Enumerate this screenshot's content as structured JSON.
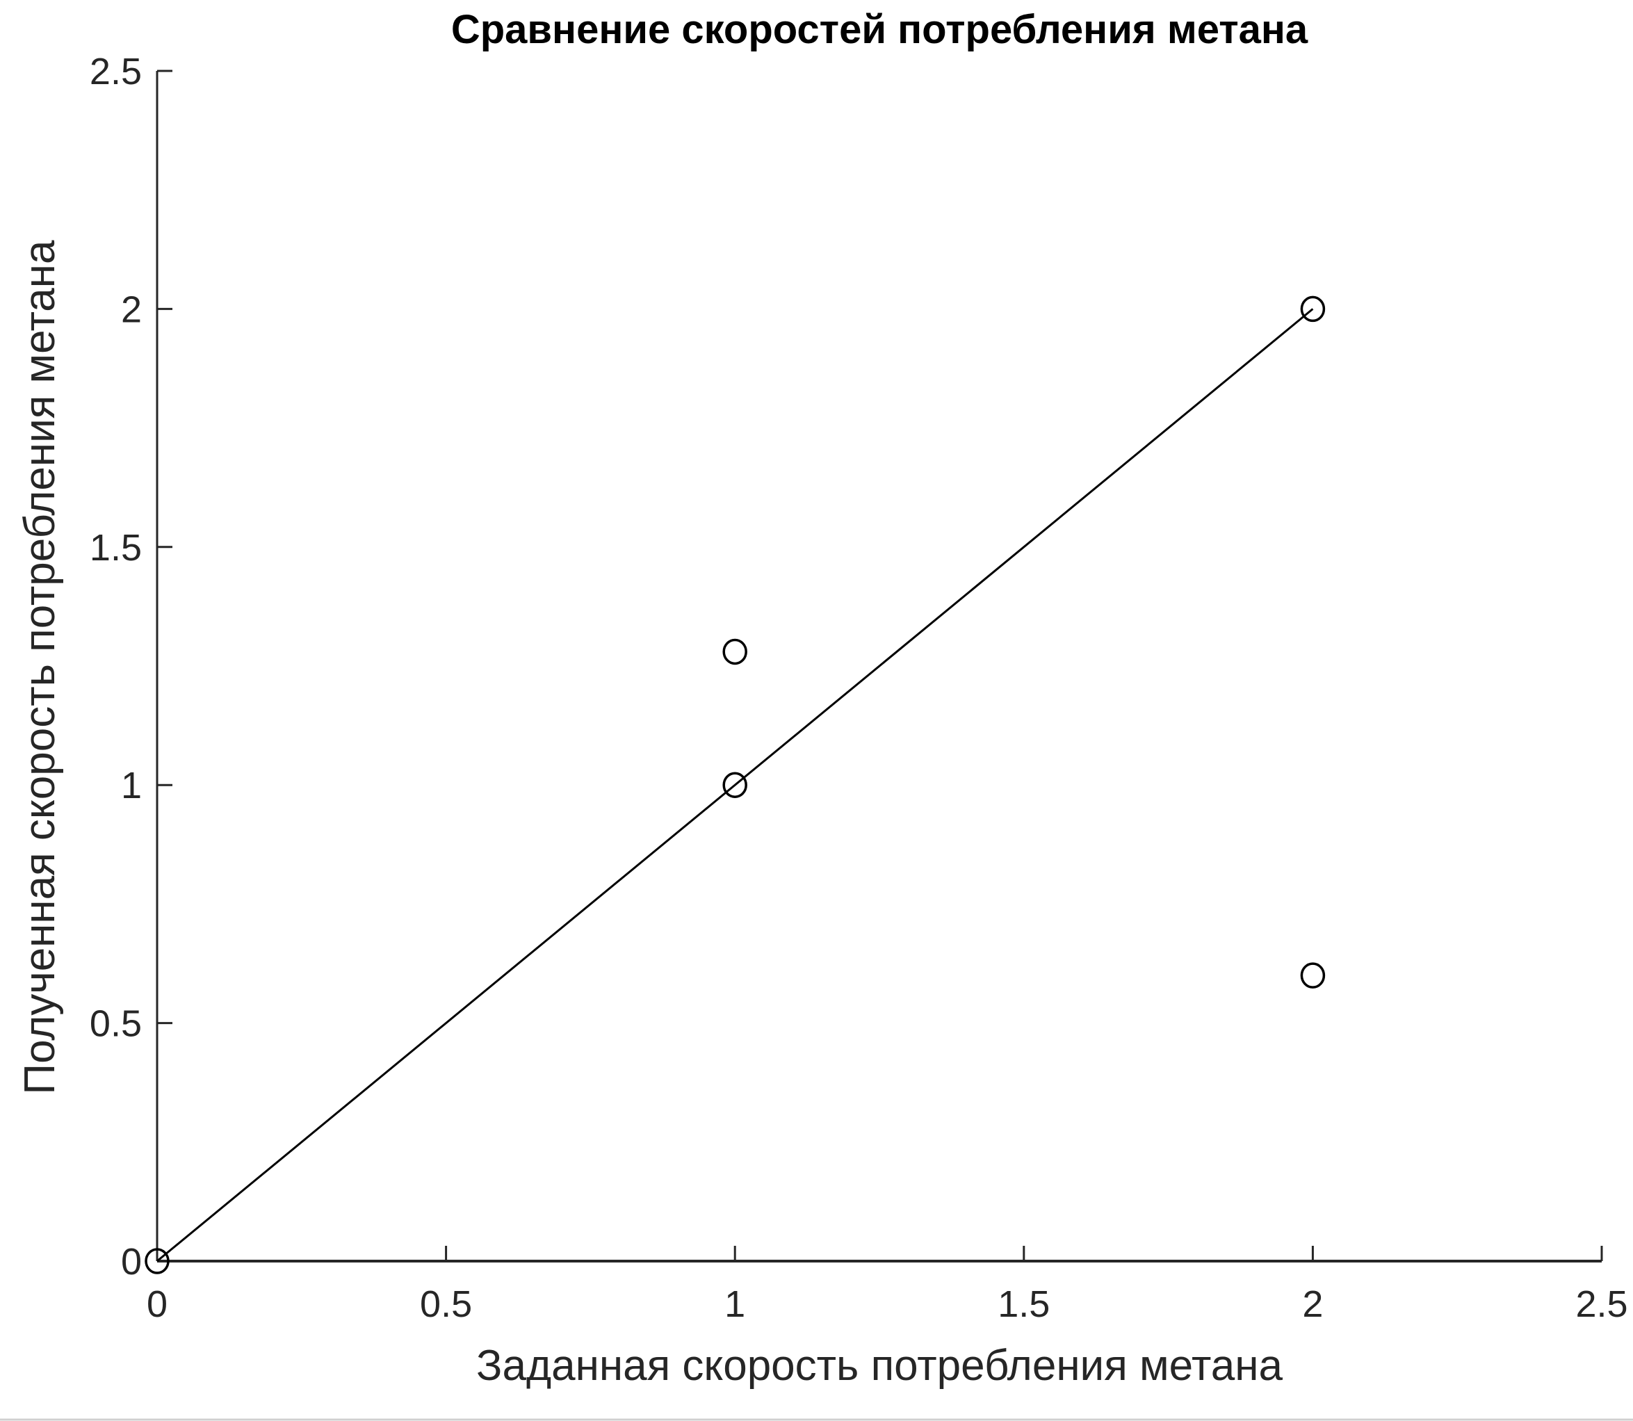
{
  "chart_data": {
    "type": "scatter",
    "title": "Сравнение скоростей потребления метана",
    "xlabel": "Заданная скорость потребления метана",
    "ylabel": "Полученная скорость потребления метана",
    "xlim": [
      0,
      2.5
    ],
    "ylim": [
      0,
      2.5
    ],
    "xticks": [
      "0",
      "0.5",
      "1",
      "1.5",
      "2",
      "2.5"
    ],
    "yticks": [
      "0",
      "0.5",
      "1",
      "1.5",
      "2",
      "2.5"
    ],
    "grid": false,
    "series": [
      {
        "type": "scatter",
        "marker": "circle",
        "x": [
          0,
          1,
          1,
          2,
          2
        ],
        "y": [
          0,
          1,
          1.28,
          2,
          0.6
        ]
      },
      {
        "type": "line",
        "x": [
          0,
          2
        ],
        "y": [
          0,
          2
        ]
      }
    ],
    "colors": {
      "marks": "#000000",
      "axes": "#262626"
    }
  }
}
